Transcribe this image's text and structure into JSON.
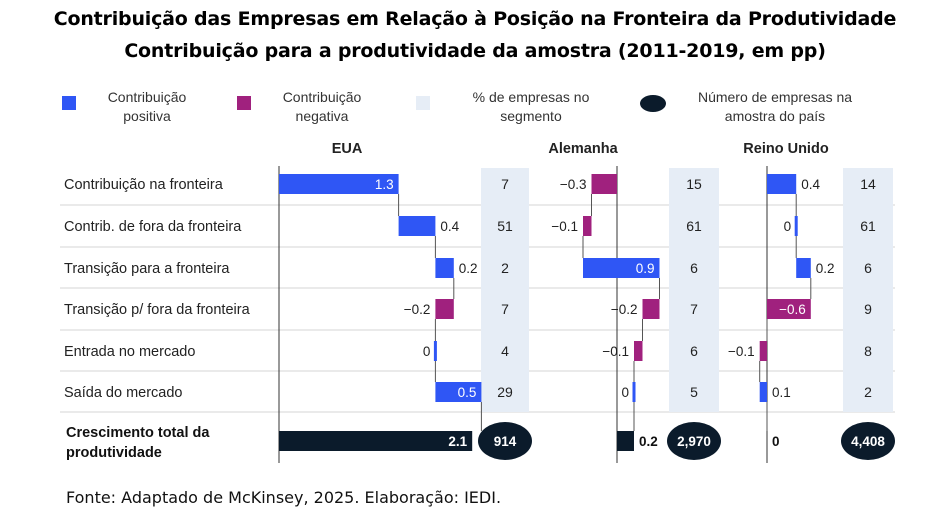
{
  "title": "Contribuição das Empresas em Relação à Posição na Fronteira da Produtividade",
  "subtitle": "Contribuição para a produtividade da amostra (2011-2019, em pp)",
  "source": "Fonte: Adaptado de McKinsey, 2025. Elaboração: IEDI.",
  "legend": [
    {
      "label_line1": "Contribuição",
      "label_line2": "positiva",
      "color": "#2f56f5"
    },
    {
      "label_line1": "Contribuição",
      "label_line2": "negativa",
      "color": "#a0217e"
    },
    {
      "label_line1": "% de empresas no",
      "label_line2": "segmento",
      "color": "#e6edf6"
    },
    {
      "label_line1": "Número de empresas na",
      "label_line2": "amostra do país",
      "color": "#0b1b2b"
    }
  ],
  "chart_data": {
    "type": "bar",
    "subtype": "waterfall",
    "categories": [
      "Contribuição na fronteira",
      "Contrib. de fora da fronteira",
      "Transição para a fronteira",
      "Transição p/ fora da fronteira",
      "Entrada no mercado",
      "Saída do mercado"
    ],
    "total_label_line1": "Crescimento total da",
    "total_label_line2": "produtividade",
    "countries": [
      {
        "name": "EUA",
        "values": [
          1.3,
          0.4,
          0.2,
          -0.2,
          0,
          0.5
        ],
        "labels": [
          "1.3",
          "0.4",
          "0.2",
          "−0.2",
          "0",
          "0.5"
        ],
        "total": 2.1,
        "total_label": "2.1",
        "share_pct": [
          "7",
          "51",
          "2",
          "7",
          "4",
          "29"
        ],
        "n_firms": "914"
      },
      {
        "name": "Alemanha",
        "values": [
          -0.3,
          -0.1,
          0.9,
          -0.2,
          -0.1,
          0
        ],
        "labels": [
          "−0.3",
          "−0.1",
          "0.9",
          "−0.2",
          "−0.1",
          "0"
        ],
        "total": 0.2,
        "total_label": "0.2",
        "share_pct": [
          "15",
          "61",
          "6",
          "7",
          "6",
          "5"
        ],
        "n_firms": "2,970"
      },
      {
        "name": "Reino Unido",
        "values": [
          0.4,
          0,
          0.2,
          -0.6,
          -0.1,
          0.1
        ],
        "labels": [
          "0.4",
          "0",
          "0.2",
          "−0.6",
          "−0.1",
          "0.1"
        ],
        "total": 0,
        "total_label": "0",
        "share_pct": [
          "14",
          "61",
          "6",
          "9",
          "8",
          "2"
        ],
        "n_firms": "4,408"
      }
    ],
    "colors": {
      "positive": "#2f56f5",
      "negative": "#a0217e",
      "total": "#0b1b2b",
      "share_bg": "#e6edf6"
    }
  }
}
